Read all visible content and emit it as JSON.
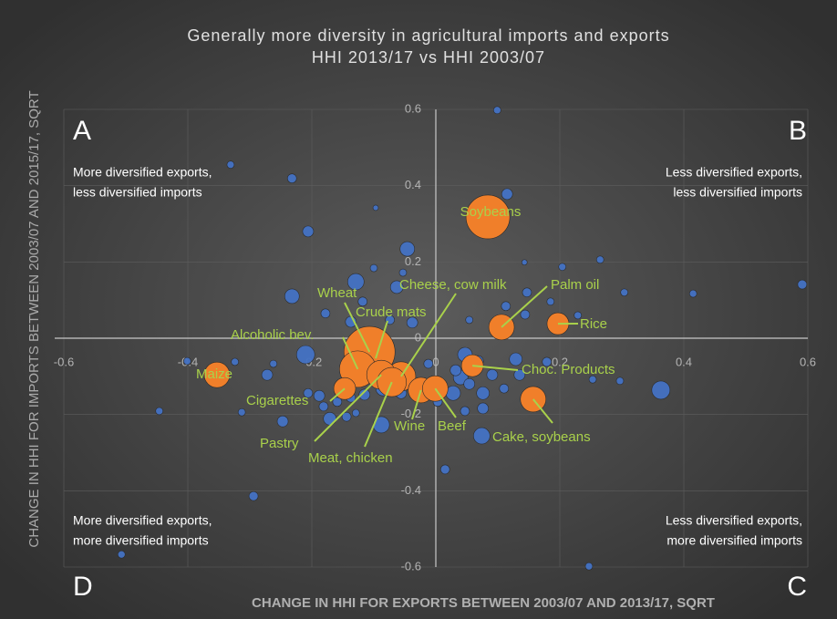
{
  "chart_data": {
    "type": "scatter",
    "title": "Generally more diversity in agricultural imports and exports",
    "subtitle": "HHI 2013/17 vs HHI 2003/07",
    "xlabel": "CHANGE IN HHI FOR EXPORTS BETWEEN 2003/07 AND 2013/17, SQRT",
    "ylabel": "CHANGE IN HHI FOR IMPORTS BETWEEN 2003/07 AND 2015/17, SQRT",
    "quadrants": [
      {
        "letter": "A",
        "lines": [
          "More diversified exports,",
          "less diversified imports"
        ]
      },
      {
        "letter": "B",
        "lines": [
          "Less diversified exports,",
          "less diversified imports"
        ]
      },
      {
        "letter": "C",
        "lines": [
          "Less diversified exports,",
          "more diversified imports"
        ]
      },
      {
        "letter": "D",
        "lines": [
          "More diversified exports,",
          "more diversified imports"
        ]
      }
    ],
    "xlim": [
      -0.6,
      0.6
    ],
    "ylim": [
      -0.6,
      0.6
    ],
    "xticks": [
      -0.6,
      -0.4,
      -0.2,
      0,
      0.2,
      0.4,
      0.6
    ],
    "yticks": [
      -0.6,
      -0.4,
      -0.2,
      0,
      0.2,
      0.4,
      0.6
    ],
    "grid": true,
    "series": [
      {
        "color": "#4472c4",
        "x": [
          0.099,
          -0.331,
          -0.232,
          0.115,
          -0.097,
          -0.206,
          -0.046,
          0.143,
          0.265,
          -0.053,
          -0.1,
          0.204,
          -0.232,
          -0.129,
          -0.063,
          0.147,
          0.185,
          0.304,
          0.415,
          0.591,
          -0.118,
          -0.178,
          -0.137,
          -0.074,
          -0.038,
          0.144,
          0.054,
          0.229,
          0.113,
          -0.21,
          -0.262,
          -0.401,
          -0.324,
          -0.272,
          0.047,
          0.068,
          0.129,
          0.179,
          0.091,
          0.135,
          0.11,
          0.076,
          0.04,
          0.054,
          0.028,
          -0.056,
          -0.085,
          -0.206,
          -0.188,
          -0.181,
          -0.159,
          -0.137,
          -0.115,
          -0.171,
          -0.144,
          -0.129,
          -0.446,
          -0.313,
          -0.247,
          -0.088,
          0.076,
          0.253,
          0.297,
          0.363,
          0.074,
          0.015,
          -0.294,
          -0.507,
          0.247,
          0.032,
          -0.012,
          0.003,
          0.047
        ],
        "values": [
          0.598,
          0.455,
          0.419,
          0.378,
          0.342,
          0.28,
          0.234,
          0.199,
          0.206,
          0.172,
          0.184,
          0.187,
          0.11,
          0.148,
          0.134,
          0.12,
          0.096,
          0.12,
          0.117,
          0.141,
          0.096,
          0.065,
          0.043,
          0.048,
          0.041,
          0.062,
          0.048,
          0.06,
          0.084,
          -0.043,
          -0.067,
          -0.06,
          -0.062,
          -0.096,
          -0.043,
          -0.06,
          -0.055,
          -0.062,
          -0.096,
          -0.096,
          -0.132,
          -0.144,
          -0.103,
          -0.12,
          -0.144,
          -0.144,
          -0.132,
          -0.144,
          -0.151,
          -0.179,
          -0.167,
          -0.156,
          -0.148,
          -0.211,
          -0.206,
          -0.196,
          -0.191,
          -0.194,
          -0.218,
          -0.227,
          -0.184,
          -0.108,
          -0.112,
          -0.136,
          -0.256,
          -0.344,
          -0.414,
          -0.567,
          -0.598,
          -0.084,
          -0.067,
          -0.167,
          -0.191
        ],
        "sizes": [
          4,
          4,
          5,
          6,
          3,
          6,
          8,
          3,
          4,
          4,
          4,
          4,
          8,
          9,
          7,
          5,
          4,
          4,
          4,
          5,
          5,
          5,
          6,
          5,
          6,
          5,
          4,
          4,
          5,
          10,
          4,
          4,
          4,
          6,
          8,
          6,
          7,
          5,
          6,
          6,
          5,
          7,
          8,
          6,
          8,
          6,
          8,
          5,
          6,
          5,
          5,
          5,
          6,
          7,
          5,
          4,
          4,
          4,
          6,
          9,
          6,
          4,
          4,
          10,
          9,
          5,
          5,
          4,
          4,
          6,
          5,
          5,
          5
        ]
      },
      {
        "color": "#f07f2a",
        "labels": [
          "Soybeans",
          "Rice",
          "Palm oil",
          "Cheese, cow milk",
          "Crude mats",
          "Wheat",
          "Alcoholic bev.",
          "Maize",
          "Cigarettes",
          "Pastry",
          "Meat, chicken",
          "Wine",
          "Beef",
          "Choc. Products",
          "Cake, soybeans"
        ],
        "x": [
          0.084,
          0.197,
          0.106,
          -0.056,
          -0.097,
          -0.107,
          -0.126,
          -0.353,
          -0.147,
          -0.088,
          -0.071,
          -0.024,
          -0.001,
          0.059,
          0.157
        ],
        "values": [
          0.318,
          0.038,
          0.029,
          -0.1,
          -0.053,
          -0.036,
          -0.081,
          -0.096,
          -0.132,
          -0.096,
          -0.115,
          -0.136,
          -0.132,
          -0.072,
          -0.16
        ],
        "sizes": [
          24,
          12,
          14,
          16,
          18,
          28,
          20,
          14,
          12,
          16,
          16,
          14,
          14,
          12,
          14
        ]
      }
    ]
  }
}
